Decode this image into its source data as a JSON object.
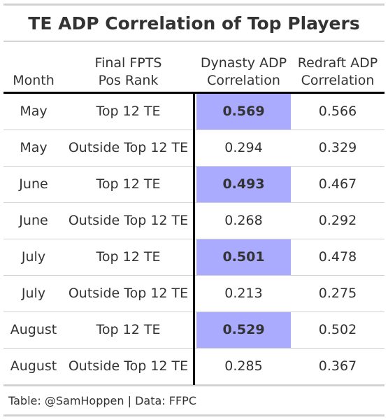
{
  "chart_data": {
    "type": "table",
    "title": "TE ADP Correlation of Top Players",
    "columns": [
      "Month",
      "Final FPTS Pos Rank",
      "Dynasty ADP Correlation",
      "Redraft ADP Correlation"
    ],
    "header_lines": {
      "month": [
        "Month"
      ],
      "rank": [
        "Final FPTS",
        "Pos Rank"
      ],
      "dynasty": [
        "Dynasty ADP",
        "Correlation"
      ],
      "redraft": [
        "Redraft ADP",
        "Correlation"
      ]
    },
    "rows": [
      {
        "month": "May",
        "rank": "Top 12 TE",
        "dynasty": "0.569",
        "redraft": "0.566",
        "highlight": true
      },
      {
        "month": "May",
        "rank": "Outside Top 12 TE",
        "dynasty": "0.294",
        "redraft": "0.329",
        "highlight": false
      },
      {
        "month": "June",
        "rank": "Top 12 TE",
        "dynasty": "0.493",
        "redraft": "0.467",
        "highlight": true
      },
      {
        "month": "June",
        "rank": "Outside Top 12 TE",
        "dynasty": "0.268",
        "redraft": "0.292",
        "highlight": false
      },
      {
        "month": "July",
        "rank": "Top 12 TE",
        "dynasty": "0.501",
        "redraft": "0.478",
        "highlight": true
      },
      {
        "month": "July",
        "rank": "Outside Top 12 TE",
        "dynasty": "0.213",
        "redraft": "0.275",
        "highlight": false
      },
      {
        "month": "August",
        "rank": "Top 12 TE",
        "dynasty": "0.529",
        "redraft": "0.502",
        "highlight": true
      },
      {
        "month": "August",
        "rank": "Outside Top 12 TE",
        "dynasty": "0.285",
        "redraft": "0.367",
        "highlight": false
      }
    ],
    "source": "Table: @SamHoppen | Data: FFPC",
    "highlight_color": "#aaaaff"
  }
}
